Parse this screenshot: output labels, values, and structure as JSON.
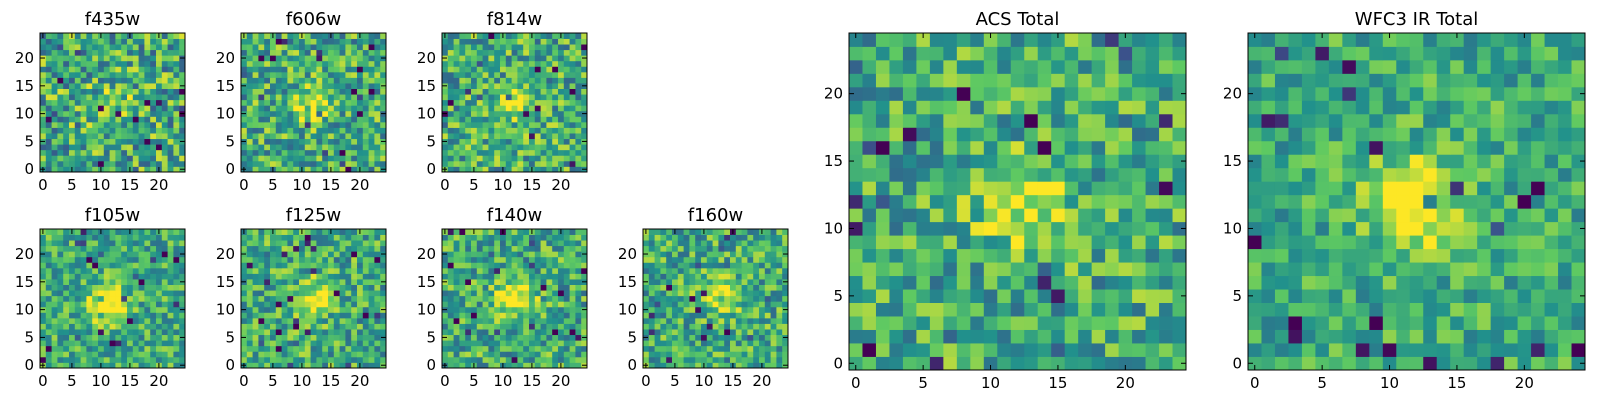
{
  "colormap": "viridis",
  "palette": [
    "#440154",
    "#3b528b",
    "#21918c",
    "#5ec962",
    "#fde725"
  ],
  "chart_data": [
    {
      "type": "heatmap",
      "title": "f435w",
      "grid_size": 25,
      "xlim": [
        -0.5,
        24.5
      ],
      "ylim": [
        -0.5,
        24.5
      ],
      "xticks": [
        0,
        5,
        10,
        15,
        20
      ],
      "yticks": [
        0,
        5,
        10,
        15,
        20
      ],
      "peak": [
        12,
        12
      ],
      "seed": 1,
      "noise_level": 0.55,
      "peak_strength": 0.2
    },
    {
      "type": "heatmap",
      "title": "f606w",
      "grid_size": 25,
      "xlim": [
        -0.5,
        24.5
      ],
      "ylim": [
        -0.5,
        24.5
      ],
      "xticks": [
        0,
        5,
        10,
        15,
        20
      ],
      "yticks": [
        0,
        5,
        10,
        15,
        20
      ],
      "peak": [
        12,
        12
      ],
      "seed": 2,
      "noise_level": 0.5,
      "peak_strength": 0.35
    },
    {
      "type": "heatmap",
      "title": "f814w",
      "grid_size": 25,
      "xlim": [
        -0.5,
        24.5
      ],
      "ylim": [
        -0.5,
        24.5
      ],
      "xticks": [
        0,
        5,
        10,
        15,
        20
      ],
      "yticks": [
        0,
        5,
        10,
        15,
        20
      ],
      "peak": [
        12,
        12
      ],
      "seed": 3,
      "noise_level": 0.5,
      "peak_strength": 0.35
    },
    {
      "type": "heatmap",
      "title": "f105w",
      "grid_size": 25,
      "xlim": [
        -0.5,
        24.5
      ],
      "ylim": [
        -0.5,
        24.5
      ],
      "xticks": [
        0,
        5,
        10,
        15,
        20
      ],
      "yticks": [
        0,
        5,
        10,
        15,
        20
      ],
      "peak": [
        11,
        11
      ],
      "seed": 4,
      "noise_level": 0.4,
      "peak_strength": 0.55
    },
    {
      "type": "heatmap",
      "title": "f125w",
      "grid_size": 25,
      "xlim": [
        -0.5,
        24.5
      ],
      "ylim": [
        -0.5,
        24.5
      ],
      "xticks": [
        0,
        5,
        10,
        15,
        20
      ],
      "yticks": [
        0,
        5,
        10,
        15,
        20
      ],
      "peak": [
        12,
        12
      ],
      "seed": 5,
      "noise_level": 0.45,
      "peak_strength": 0.4
    },
    {
      "type": "heatmap",
      "title": "f140w",
      "grid_size": 25,
      "xlim": [
        -0.5,
        24.5
      ],
      "ylim": [
        -0.5,
        24.5
      ],
      "xticks": [
        0,
        5,
        10,
        15,
        20
      ],
      "yticks": [
        0,
        5,
        10,
        15,
        20
      ],
      "peak": [
        12,
        12
      ],
      "seed": 6,
      "noise_level": 0.45,
      "peak_strength": 0.45
    },
    {
      "type": "heatmap",
      "title": "f160w",
      "grid_size": 25,
      "xlim": [
        -0.5,
        24.5
      ],
      "ylim": [
        -0.5,
        24.5
      ],
      "xticks": [
        0,
        5,
        10,
        15,
        20
      ],
      "yticks": [
        0,
        5,
        10,
        15,
        20
      ],
      "peak": [
        13,
        13
      ],
      "seed": 7,
      "noise_level": 0.45,
      "peak_strength": 0.45
    },
    {
      "type": "heatmap",
      "title": "ACS Total",
      "grid_size": 25,
      "xlim": [
        -0.5,
        24.5
      ],
      "ylim": [
        -0.5,
        24.5
      ],
      "xticks": [
        0,
        5,
        10,
        15,
        20
      ],
      "yticks": [
        0,
        5,
        10,
        15,
        20
      ],
      "peak": [
        12,
        12
      ],
      "seed": 8,
      "noise_level": 0.45,
      "peak_strength": 0.4
    },
    {
      "type": "heatmap",
      "title": "WFC3 IR Total",
      "grid_size": 25,
      "xlim": [
        -0.5,
        24.5
      ],
      "ylim": [
        -0.5,
        24.5
      ],
      "xticks": [
        0,
        5,
        10,
        15,
        20
      ],
      "yticks": [
        0,
        5,
        10,
        15,
        20
      ],
      "peak": [
        12,
        12
      ],
      "seed": 9,
      "noise_level": 0.35,
      "peak_strength": 0.55
    }
  ]
}
